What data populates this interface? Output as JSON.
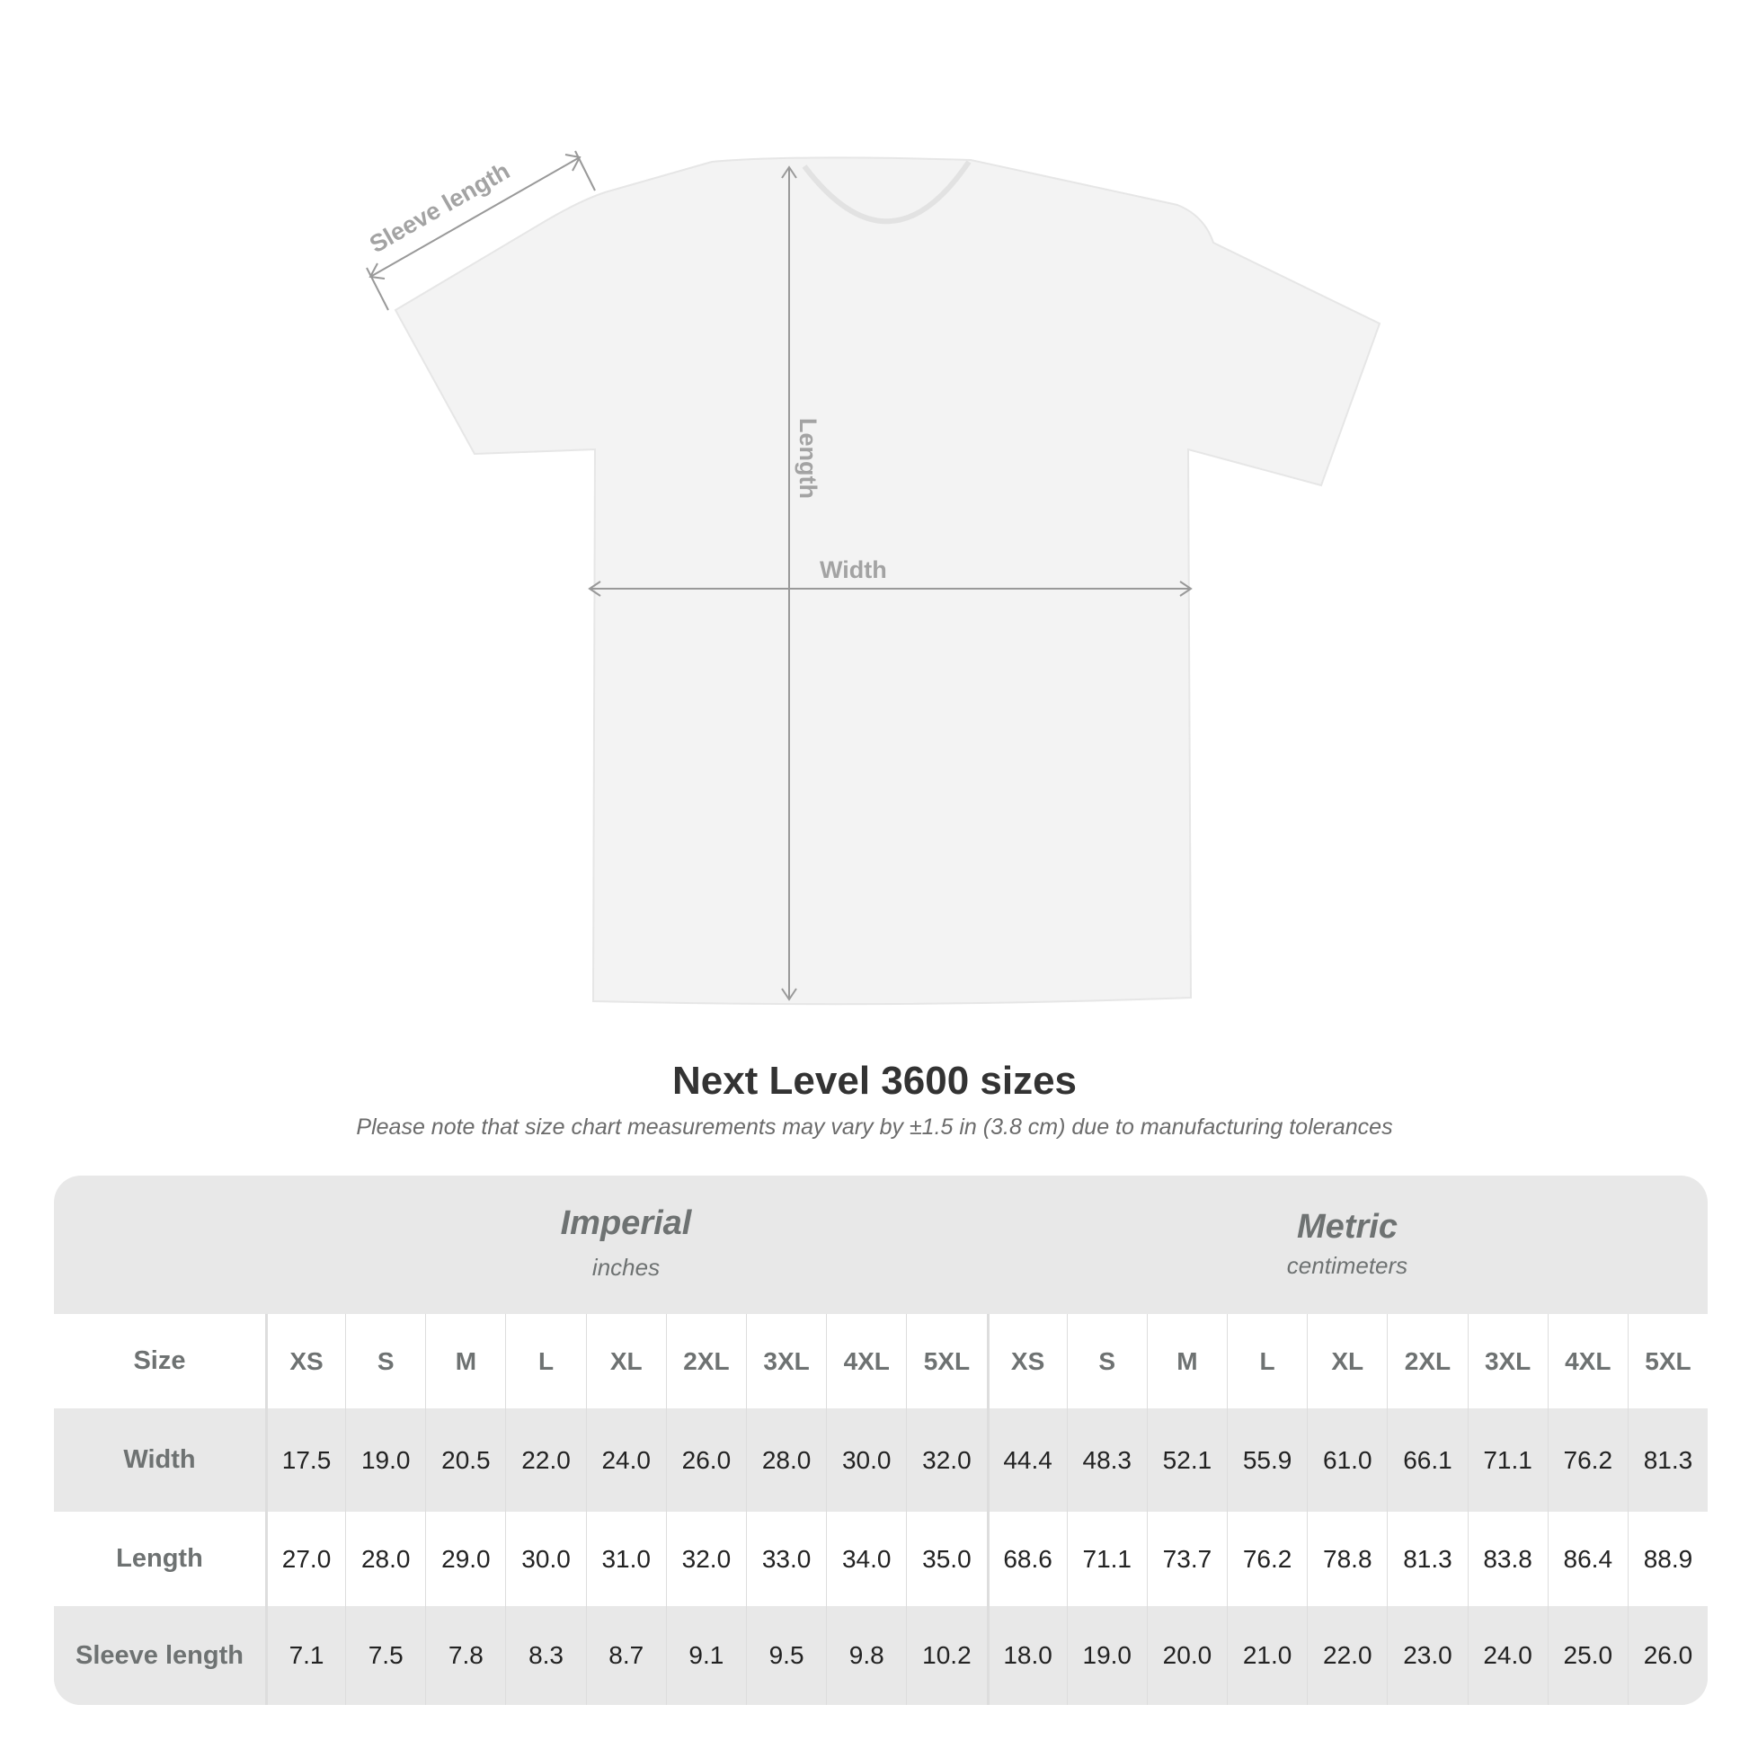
{
  "diagram": {
    "sleeve_label": "Sleeve length",
    "length_label": "Length",
    "width_label": "Width"
  },
  "title": "Next Level 3600 sizes",
  "note": "Please note that size chart measurements may vary by ±1.5 in (3.8 cm) due to manufacturing tolerances",
  "imperial": {
    "name": "Imperial",
    "unit": "inches"
  },
  "metric": {
    "name": "Metric",
    "unit": "centimeters"
  },
  "rows": [
    {
      "label": "Size",
      "values": [
        "XS",
        "S",
        "M",
        "L",
        "XL",
        "2XL",
        "3XL",
        "4XL",
        "5XL",
        "XS",
        "S",
        "M",
        "L",
        "XL",
        "2XL",
        "3XL",
        "4XL",
        "5XL"
      ]
    },
    {
      "label": "Width",
      "values": [
        "17.5",
        "19.0",
        "20.5",
        "22.0",
        "24.0",
        "26.0",
        "28.0",
        "30.0",
        "32.0",
        "44.4",
        "48.3",
        "52.1",
        "55.9",
        "61.0",
        "66.1",
        "71.1",
        "76.2",
        "81.3"
      ]
    },
    {
      "label": "Length",
      "values": [
        "27.0",
        "28.0",
        "29.0",
        "30.0",
        "31.0",
        "32.0",
        "33.0",
        "34.0",
        "35.0",
        "68.6",
        "71.1",
        "73.7",
        "76.2",
        "78.8",
        "81.3",
        "83.8",
        "86.4",
        "88.9"
      ]
    },
    {
      "label": "Sleeve length",
      "values": [
        "7.1",
        "7.5",
        "7.8",
        "8.3",
        "8.7",
        "9.1",
        "9.5",
        "9.8",
        "10.2",
        "18.0",
        "19.0",
        "20.0",
        "21.0",
        "22.0",
        "23.0",
        "24.0",
        "25.0",
        "26.0"
      ]
    }
  ]
}
